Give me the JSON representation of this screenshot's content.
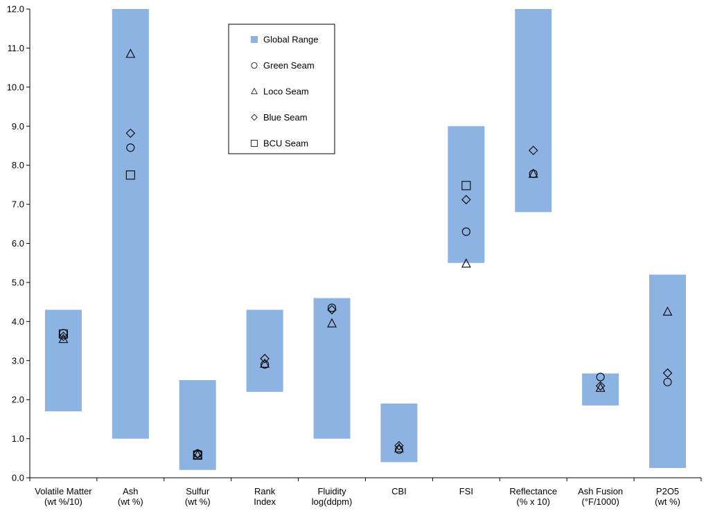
{
  "chart_data": {
    "type": "scatter",
    "ylim": [
      0,
      12
    ],
    "y_ticks": [
      "0.0",
      "1.0",
      "2.0",
      "3.0",
      "4.0",
      "5.0",
      "6.0",
      "7.0",
      "8.0",
      "9.0",
      "10.0",
      "11.0",
      "12.0"
    ],
    "categories": [
      [
        "Volatile Matter",
        "(wt %/10)"
      ],
      [
        "Ash",
        "(wt %)"
      ],
      [
        "Sulfur",
        "(wt %)"
      ],
      [
        "Rank",
        "Index"
      ],
      [
        "Fluidity",
        "log(ddpm)"
      ],
      [
        "CBI",
        ""
      ],
      [
        "FSI",
        ""
      ],
      [
        "Reflectance",
        "(% x 10)"
      ],
      [
        "Ash Fusion",
        "(°F/1000)"
      ],
      [
        "P2O5",
        "(wt %)"
      ]
    ],
    "range_series": {
      "name": "Global Range",
      "color": "#8db3e2",
      "low": [
        1.7,
        1.0,
        0.2,
        2.2,
        1.0,
        0.4,
        5.5,
        6.8,
        1.85,
        0.25
      ],
      "high": [
        4.3,
        12.0,
        2.5,
        4.3,
        4.6,
        1.9,
        9.0,
        12.0,
        2.67,
        5.2
      ]
    },
    "series": [
      {
        "name": "Green Seam",
        "marker": "circle",
        "values": [
          3.7,
          8.45,
          0.62,
          2.9,
          4.35,
          0.72,
          6.3,
          7.78,
          2.58,
          2.45
        ]
      },
      {
        "name": "Loco Seam",
        "marker": "triangle",
        "values": [
          3.55,
          10.85,
          0.58,
          2.92,
          3.95,
          0.75,
          5.48,
          7.78,
          2.3,
          4.25
        ]
      },
      {
        "name": "Blue Seam",
        "marker": "diamond",
        "values": [
          3.62,
          8.82,
          0.62,
          3.05,
          4.3,
          0.82,
          7.12,
          8.38,
          2.35,
          2.68
        ]
      },
      {
        "name": "BCU Seam",
        "marker": "square",
        "values": [
          3.68,
          7.75,
          0.58,
          null,
          null,
          null,
          7.48,
          null,
          null,
          null
        ]
      }
    ],
    "legend": {
      "placement": "top-center"
    }
  }
}
